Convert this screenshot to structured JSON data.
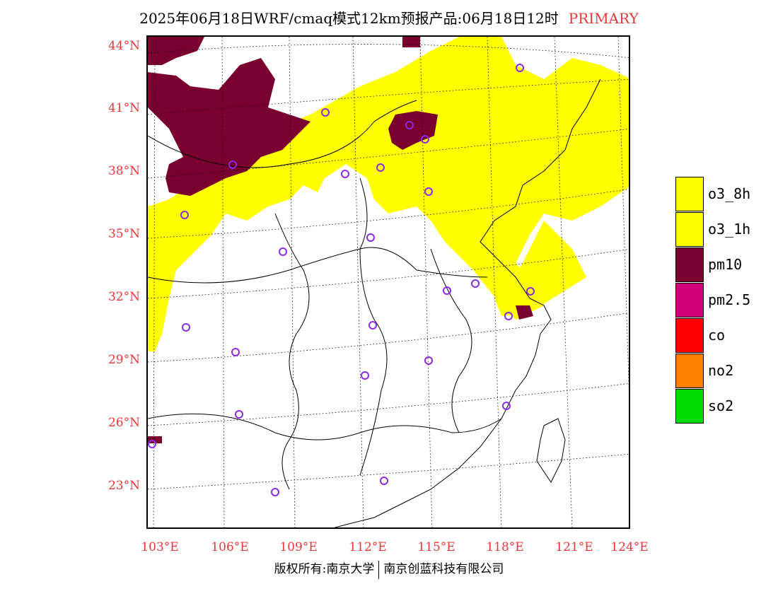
{
  "title": {
    "text": "2025年06月18日WRF/cmaq模式12km预报产品:06月18日12时",
    "tag": "PRIMARY"
  },
  "lat_labels": [
    "44°N",
    "41°N",
    "38°N",
    "35°N",
    "32°N",
    "29°N",
    "26°N",
    "23°N"
  ],
  "lon_labels": [
    "103°E",
    "106°E",
    "109°E",
    "112°E",
    "115°E",
    "118°E",
    "121°E",
    "124°E"
  ],
  "legend": [
    {
      "label": "o3_8h",
      "color": "#ffff00"
    },
    {
      "label": "o3_1h",
      "color": "#ffff00"
    },
    {
      "label": "pm10",
      "color": "#7a0030"
    },
    {
      "label": "pm2.5",
      "color": "#d0007a"
    },
    {
      "label": "co",
      "color": "#ff0000"
    },
    {
      "label": "no2",
      "color": "#ff8000"
    },
    {
      "label": "so2",
      "color": "#00dd00"
    }
  ],
  "footer": {
    "left": "版权所有:南京大学",
    "right": "南京创蓝科技有限公司"
  }
}
